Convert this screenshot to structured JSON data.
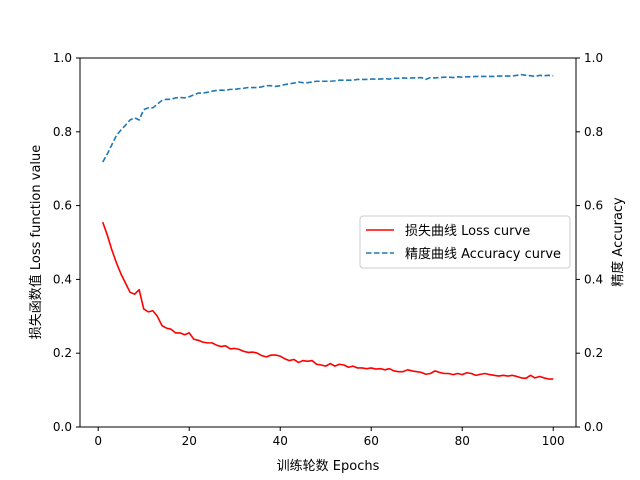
{
  "chart_data": {
    "type": "line",
    "xlabel": "训练轮数 Epochs",
    "ylabel_left": "损失函数值 Loss function value",
    "ylabel_right": "精度 Accuracy",
    "xlim": [
      -4,
      105
    ],
    "ylim_left": [
      0,
      1
    ],
    "ylim_right": [
      0,
      1
    ],
    "x_ticks": [
      0,
      20,
      40,
      60,
      80,
      100
    ],
    "x_tick_labels": [
      "0",
      "20",
      "40",
      "60",
      "80",
      "100"
    ],
    "y_ticks": [
      0,
      0.2,
      0.4,
      0.6,
      0.8,
      1.0
    ],
    "y_tick_labels": [
      "0.0",
      "0.2",
      "0.4",
      "0.6",
      "0.8",
      "1.0"
    ],
    "grid": false,
    "legend_position": "center-right",
    "series": [
      {
        "name": "损失曲线 Loss curve",
        "axis": "left",
        "color": "#ff0000",
        "style": "solid",
        "x": [
          1,
          2,
          3,
          4,
          5,
          6,
          7,
          8,
          9,
          10,
          11,
          12,
          13,
          14,
          15,
          16,
          17,
          18,
          19,
          20,
          21,
          22,
          23,
          24,
          25,
          26,
          27,
          28,
          29,
          30,
          31,
          32,
          33,
          34,
          35,
          36,
          37,
          38,
          39,
          40,
          41,
          42,
          43,
          44,
          45,
          46,
          47,
          48,
          49,
          50,
          51,
          52,
          53,
          54,
          55,
          56,
          57,
          58,
          59,
          60,
          61,
          62,
          63,
          64,
          65,
          66,
          67,
          68,
          69,
          70,
          71,
          72,
          73,
          74,
          75,
          76,
          77,
          78,
          79,
          80,
          81,
          82,
          83,
          84,
          85,
          86,
          87,
          88,
          89,
          90,
          91,
          92,
          93,
          94,
          95,
          96,
          97,
          98,
          99,
          100
        ],
        "values": [
          0.555,
          0.52,
          0.48,
          0.445,
          0.415,
          0.39,
          0.365,
          0.36,
          0.372,
          0.32,
          0.312,
          0.315,
          0.3,
          0.275,
          0.268,
          0.265,
          0.255,
          0.255,
          0.25,
          0.255,
          0.238,
          0.235,
          0.23,
          0.228,
          0.228,
          0.222,
          0.218,
          0.22,
          0.212,
          0.213,
          0.21,
          0.205,
          0.202,
          0.203,
          0.2,
          0.193,
          0.19,
          0.195,
          0.195,
          0.192,
          0.185,
          0.18,
          0.183,
          0.175,
          0.18,
          0.178,
          0.18,
          0.17,
          0.168,
          0.165,
          0.172,
          0.165,
          0.17,
          0.168,
          0.162,
          0.165,
          0.16,
          0.16,
          0.158,
          0.16,
          0.157,
          0.158,
          0.155,
          0.158,
          0.152,
          0.15,
          0.15,
          0.155,
          0.152,
          0.15,
          0.148,
          0.143,
          0.145,
          0.152,
          0.148,
          0.145,
          0.145,
          0.142,
          0.145,
          0.142,
          0.147,
          0.145,
          0.14,
          0.143,
          0.145,
          0.142,
          0.14,
          0.138,
          0.14,
          0.138,
          0.14,
          0.137,
          0.133,
          0.132,
          0.14,
          0.133,
          0.137,
          0.133,
          0.13,
          0.13
        ]
      },
      {
        "name": "精度曲线 Accuracy curve",
        "axis": "right",
        "color": "#1f77b4",
        "style": "dashed",
        "x": [
          1,
          2,
          3,
          4,
          5,
          6,
          7,
          8,
          9,
          10,
          11,
          12,
          13,
          14,
          15,
          16,
          17,
          18,
          19,
          20,
          21,
          22,
          23,
          24,
          25,
          26,
          27,
          28,
          29,
          30,
          31,
          32,
          33,
          34,
          35,
          36,
          37,
          38,
          39,
          40,
          41,
          42,
          43,
          44,
          45,
          46,
          47,
          48,
          49,
          50,
          51,
          52,
          53,
          54,
          55,
          56,
          57,
          58,
          59,
          60,
          61,
          62,
          63,
          64,
          65,
          66,
          67,
          68,
          69,
          70,
          71,
          72,
          73,
          74,
          75,
          76,
          77,
          78,
          79,
          80,
          81,
          82,
          83,
          84,
          85,
          86,
          87,
          88,
          89,
          90,
          91,
          92,
          93,
          94,
          95,
          96,
          97,
          98,
          99,
          100
        ],
        "values": [
          0.718,
          0.74,
          0.765,
          0.79,
          0.805,
          0.818,
          0.832,
          0.838,
          0.832,
          0.86,
          0.865,
          0.865,
          0.875,
          0.885,
          0.888,
          0.888,
          0.892,
          0.893,
          0.892,
          0.895,
          0.9,
          0.905,
          0.905,
          0.907,
          0.91,
          0.912,
          0.913,
          0.912,
          0.915,
          0.915,
          0.917,
          0.918,
          0.92,
          0.92,
          0.92,
          0.922,
          0.925,
          0.925,
          0.923,
          0.925,
          0.928,
          0.93,
          0.932,
          0.935,
          0.933,
          0.933,
          0.935,
          0.937,
          0.937,
          0.937,
          0.937,
          0.938,
          0.94,
          0.94,
          0.94,
          0.94,
          0.942,
          0.942,
          0.942,
          0.943,
          0.943,
          0.943,
          0.944,
          0.943,
          0.945,
          0.945,
          0.946,
          0.945,
          0.946,
          0.946,
          0.947,
          0.942,
          0.947,
          0.946,
          0.947,
          0.948,
          0.948,
          0.947,
          0.949,
          0.948,
          0.949,
          0.949,
          0.95,
          0.95,
          0.95,
          0.95,
          0.95,
          0.951,
          0.951,
          0.951,
          0.951,
          0.953,
          0.955,
          0.953,
          0.952,
          0.95,
          0.953,
          0.952,
          0.953,
          0.952
        ]
      }
    ]
  }
}
